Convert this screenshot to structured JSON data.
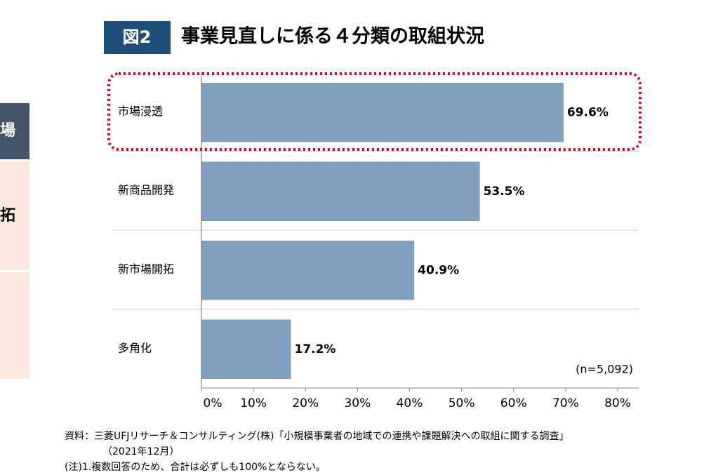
{
  "chart_data": {
    "type": "bar",
    "orientation": "horizontal",
    "figure_label": "図2",
    "title": "事業見直しに係る４分類の取組状況",
    "categories": [
      "市場浸透",
      "新商品開発",
      "新市場開拓",
      "多角化"
    ],
    "values": [
      69.6,
      53.5,
      40.9,
      17.2
    ],
    "value_labels": [
      "69.6%",
      "53.5%",
      "40.9%",
      "17.2%"
    ],
    "color": "#819fbf",
    "xlim": [
      0,
      80
    ],
    "xticks": [
      {
        "value": 0,
        "label": "0%"
      },
      {
        "value": 10,
        "label": "10%"
      },
      {
        "value": 20,
        "label": "20%"
      },
      {
        "value": 30,
        "label": "30%"
      },
      {
        "value": 40,
        "label": "40%"
      },
      {
        "value": 50,
        "label": "50%"
      },
      {
        "value": 60,
        "label": "60%"
      },
      {
        "value": 70,
        "label": "70%"
      },
      {
        "value": 80,
        "label": "80%"
      }
    ],
    "highlight_color": "#e60012",
    "annotation": "(n=5,092)",
    "notes": [
      "資料：三菱UFJリサーチ＆コンサルティング(株)「小規模事業者の地域での連携や課題解決への取組に関する調査」",
      "（2021年12月）",
      "(注)1.複数回答のため、合計は必ずしも100%とならない。"
    ]
  },
  "side_labels": [
    "場",
    "拓"
  ]
}
